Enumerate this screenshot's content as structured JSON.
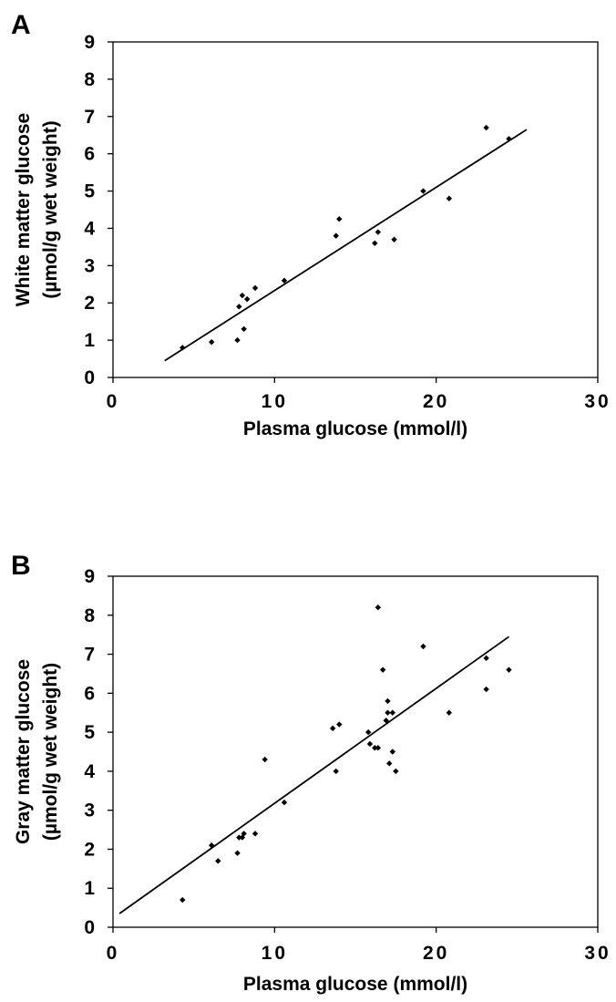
{
  "chart_data": [
    {
      "panel_label": "A",
      "type": "scatter",
      "xlabel": "Plasma glucose (mmol/l)",
      "ylabel": [
        "White matter glucose",
        "(µmol/g wet weight)"
      ],
      "xlim": [
        0,
        30
      ],
      "ylim": [
        0,
        9
      ],
      "xticks": [
        "0",
        "10",
        "20",
        "30"
      ],
      "yticks": [
        "0",
        "1",
        "2",
        "3",
        "4",
        "5",
        "6",
        "7",
        "8",
        "9"
      ],
      "grid": false,
      "points": [
        {
          "x": 4.3,
          "y": 0.8
        },
        {
          "x": 6.1,
          "y": 0.95
        },
        {
          "x": 7.7,
          "y": 1.0
        },
        {
          "x": 7.8,
          "y": 1.9
        },
        {
          "x": 8.0,
          "y": 2.2
        },
        {
          "x": 8.1,
          "y": 1.3
        },
        {
          "x": 8.3,
          "y": 2.1
        },
        {
          "x": 8.8,
          "y": 2.4
        },
        {
          "x": 10.6,
          "y": 2.6
        },
        {
          "x": 13.8,
          "y": 3.8
        },
        {
          "x": 14.0,
          "y": 4.25
        },
        {
          "x": 16.2,
          "y": 3.6
        },
        {
          "x": 16.4,
          "y": 3.9
        },
        {
          "x": 17.4,
          "y": 3.7
        },
        {
          "x": 19.2,
          "y": 5.0
        },
        {
          "x": 20.8,
          "y": 4.8
        },
        {
          "x": 23.1,
          "y": 6.7
        },
        {
          "x": 24.5,
          "y": 6.4
        }
      ],
      "trendline": {
        "x": [
          3.2,
          25.6
        ],
        "y": [
          0.45,
          6.65
        ]
      }
    },
    {
      "panel_label": "B",
      "type": "scatter",
      "xlabel": "Plasma glucose (mmol/l)",
      "ylabel": [
        "Gray matter glucose",
        "(µmol/g wet weight)"
      ],
      "xlim": [
        0,
        30
      ],
      "ylim": [
        0,
        9
      ],
      "xticks": [
        "0",
        "10",
        "20",
        "30"
      ],
      "yticks": [
        "0",
        "1",
        "2",
        "3",
        "4",
        "5",
        "6",
        "7",
        "8",
        "9"
      ],
      "grid": false,
      "points": [
        {
          "x": 4.3,
          "y": 0.7
        },
        {
          "x": 6.1,
          "y": 2.1
        },
        {
          "x": 6.5,
          "y": 1.7
        },
        {
          "x": 7.7,
          "y": 1.9
        },
        {
          "x": 7.8,
          "y": 2.3
        },
        {
          "x": 8.0,
          "y": 2.3
        },
        {
          "x": 8.1,
          "y": 2.4
        },
        {
          "x": 8.8,
          "y": 2.4
        },
        {
          "x": 9.4,
          "y": 4.3
        },
        {
          "x": 10.6,
          "y": 3.2
        },
        {
          "x": 13.6,
          "y": 5.1
        },
        {
          "x": 13.8,
          "y": 4.0
        },
        {
          "x": 14.0,
          "y": 5.2
        },
        {
          "x": 15.8,
          "y": 5.0
        },
        {
          "x": 15.9,
          "y": 4.7
        },
        {
          "x": 16.2,
          "y": 4.6
        },
        {
          "x": 16.4,
          "y": 8.2
        },
        {
          "x": 16.4,
          "y": 4.6
        },
        {
          "x": 16.7,
          "y": 6.6
        },
        {
          "x": 16.9,
          "y": 5.3
        },
        {
          "x": 17.0,
          "y": 5.8
        },
        {
          "x": 17.0,
          "y": 5.5
        },
        {
          "x": 17.1,
          "y": 4.2
        },
        {
          "x": 17.3,
          "y": 5.5
        },
        {
          "x": 17.3,
          "y": 4.5
        },
        {
          "x": 17.5,
          "y": 4.0
        },
        {
          "x": 19.2,
          "y": 7.2
        },
        {
          "x": 20.8,
          "y": 5.5
        },
        {
          "x": 23.1,
          "y": 6.9
        },
        {
          "x": 23.1,
          "y": 6.1
        },
        {
          "x": 24.5,
          "y": 6.6
        }
      ],
      "trendline": {
        "x": [
          0.4,
          24.5
        ],
        "y": [
          0.35,
          7.45
        ]
      }
    }
  ]
}
